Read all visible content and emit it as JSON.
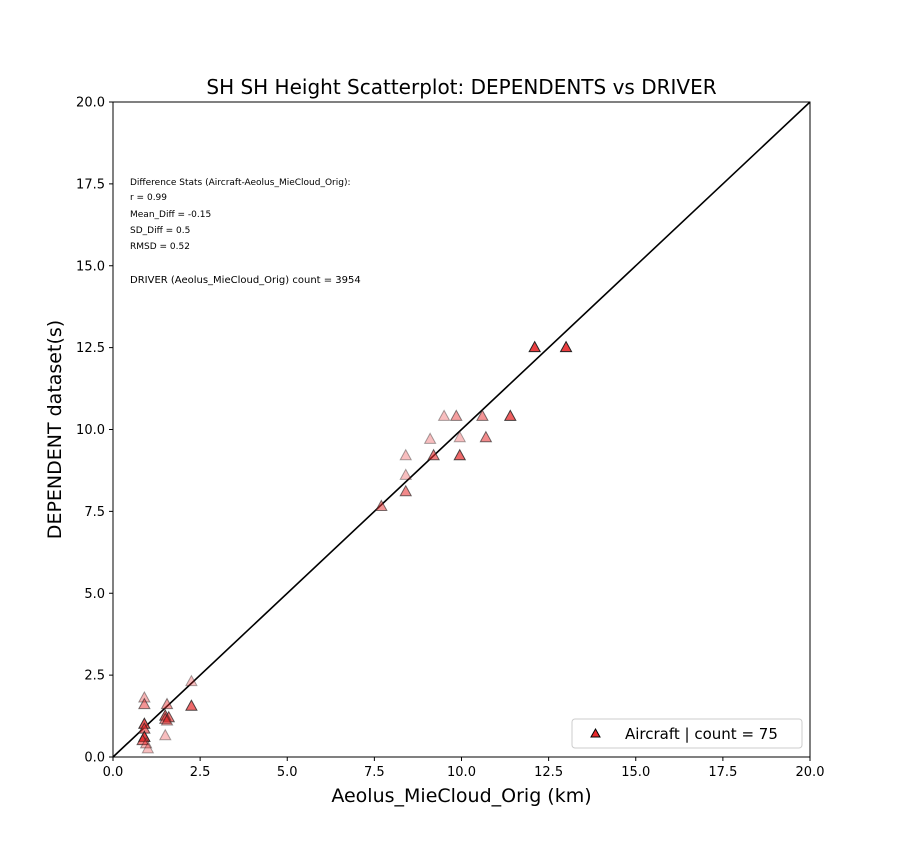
{
  "chart_data": {
    "type": "scatter",
    "title": "SH SH Height Scatterplot: DEPENDENTS vs DRIVER",
    "xlabel": "Aeolus_MieCloud_Orig (km)",
    "ylabel": "DEPENDENT dataset(s)",
    "xlim": [
      0,
      20
    ],
    "ylim": [
      0,
      20
    ],
    "x_ticks": [
      "0.0",
      "2.5",
      "5.0",
      "7.5",
      "10.0",
      "12.5",
      "15.0",
      "17.5",
      "20.0"
    ],
    "y_ticks": [
      "0.0",
      "2.5",
      "5.0",
      "7.5",
      "10.0",
      "12.5",
      "15.0",
      "17.5",
      "20.0"
    ],
    "grid": false,
    "reference_line": "1:1",
    "stats_text": [
      "Difference Stats (Aircraft-Aeolus_MieCloud_Orig):",
      "r = 0.99",
      "Mean_Diff = -0.15",
      "SD_Diff = 0.5",
      "RMSD = 0.52"
    ],
    "count_text": "DRIVER (Aeolus_MieCloud_Orig) count = 3954",
    "legend": {
      "location": "lower-right",
      "label": "Aircraft | count = 75"
    },
    "series": [
      {
        "name": "Aircraft | count = 75",
        "marker": "triangle",
        "color": "#e8292b",
        "edge_color": "#222222",
        "points": [
          {
            "x": 12.1,
            "y": 12.5,
            "a": 0.9
          },
          {
            "x": 13.0,
            "y": 12.5,
            "a": 0.9
          },
          {
            "x": 11.4,
            "y": 10.4,
            "a": 0.75
          },
          {
            "x": 10.6,
            "y": 10.4,
            "a": 0.5
          },
          {
            "x": 9.85,
            "y": 10.4,
            "a": 0.45
          },
          {
            "x": 9.5,
            "y": 10.4,
            "a": 0.3
          },
          {
            "x": 10.7,
            "y": 9.75,
            "a": 0.55
          },
          {
            "x": 9.95,
            "y": 9.75,
            "a": 0.3
          },
          {
            "x": 9.1,
            "y": 9.7,
            "a": 0.3
          },
          {
            "x": 9.95,
            "y": 9.2,
            "a": 0.7
          },
          {
            "x": 9.2,
            "y": 9.2,
            "a": 0.6
          },
          {
            "x": 8.4,
            "y": 9.2,
            "a": 0.3
          },
          {
            "x": 8.4,
            "y": 8.6,
            "a": 0.3
          },
          {
            "x": 8.4,
            "y": 8.1,
            "a": 0.55
          },
          {
            "x": 7.7,
            "y": 7.65,
            "a": 0.5
          },
          {
            "x": 2.25,
            "y": 2.3,
            "a": 0.3
          },
          {
            "x": 2.25,
            "y": 1.55,
            "a": 0.7
          },
          {
            "x": 1.55,
            "y": 1.6,
            "a": 0.45
          },
          {
            "x": 1.5,
            "y": 1.25,
            "a": 0.7
          },
          {
            "x": 1.6,
            "y": 1.2,
            "a": 0.6
          },
          {
            "x": 1.5,
            "y": 1.15,
            "a": 0.5
          },
          {
            "x": 1.55,
            "y": 1.1,
            "a": 0.4
          },
          {
            "x": 1.5,
            "y": 0.65,
            "a": 0.3
          },
          {
            "x": 0.9,
            "y": 1.8,
            "a": 0.35
          },
          {
            "x": 0.9,
            "y": 1.6,
            "a": 0.5
          },
          {
            "x": 0.9,
            "y": 1.0,
            "a": 0.8
          },
          {
            "x": 0.9,
            "y": 0.85,
            "a": 0.6
          },
          {
            "x": 0.9,
            "y": 0.6,
            "a": 0.9
          },
          {
            "x": 0.85,
            "y": 0.5,
            "a": 0.6
          },
          {
            "x": 0.95,
            "y": 0.4,
            "a": 0.35
          },
          {
            "x": 1.0,
            "y": 0.25,
            "a": 0.3
          }
        ]
      }
    ]
  }
}
